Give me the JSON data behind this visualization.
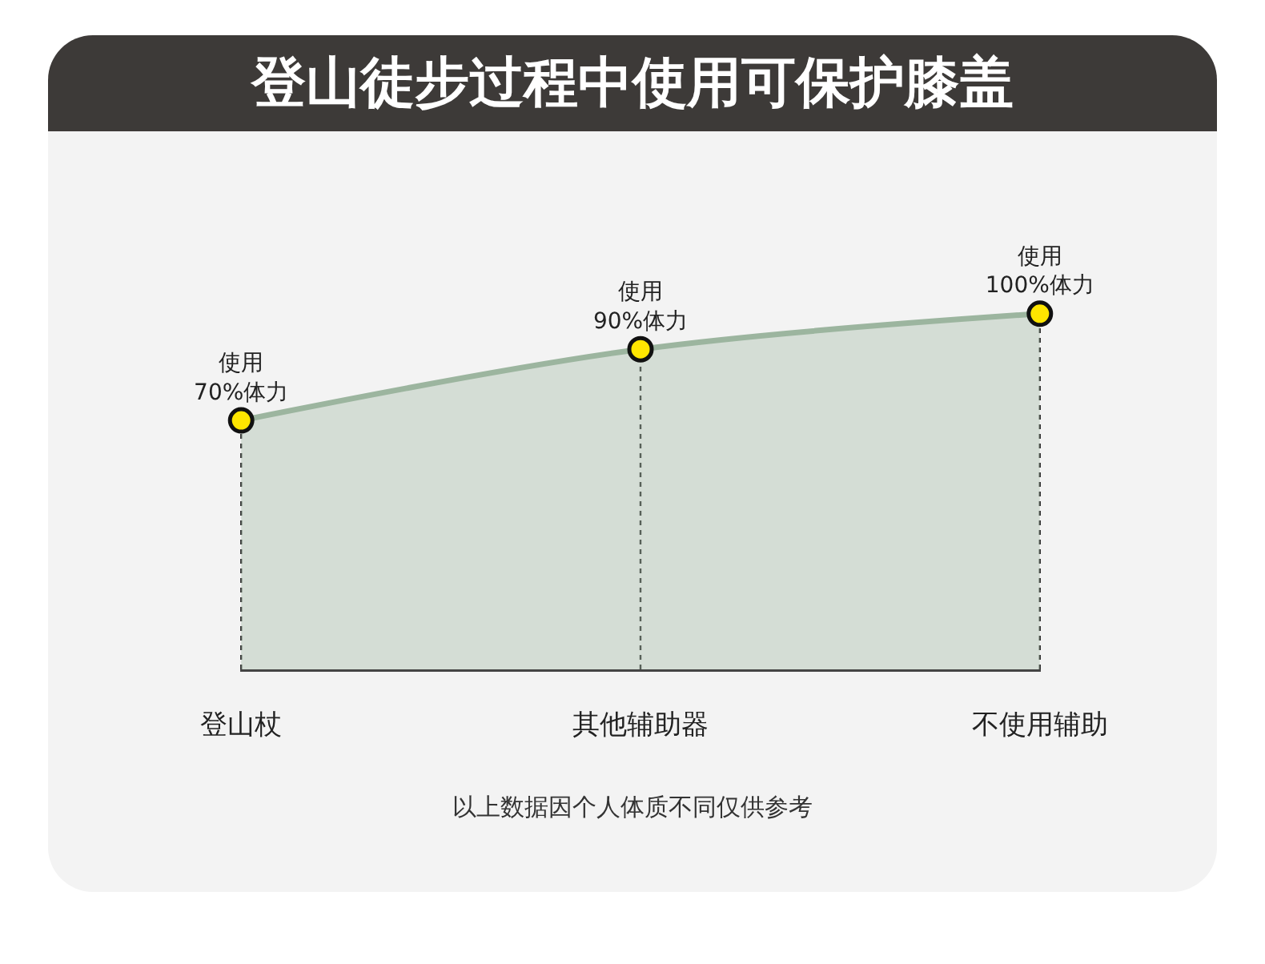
{
  "chart_data": {
    "type": "area",
    "title": "登山徒步过程中使用可保护膝盖",
    "categories": [
      "登山杖",
      "其他辅助器",
      "不使用辅助"
    ],
    "series": [
      {
        "color": "#9cb59f",
        "colors": [
          "#ffe600",
          "#ffe600",
          "#ffe600"
        ],
        "values": [
          70,
          90,
          100
        ],
        "value_labels": [
          "使用\n70%体力",
          "使用\n90%体力",
          "使用\n100%体力"
        ]
      }
    ],
    "marker": "circle",
    "grid": "x",
    "annotations": [
      "以上数据因个人体质不同仅供参考"
    ]
  }
}
